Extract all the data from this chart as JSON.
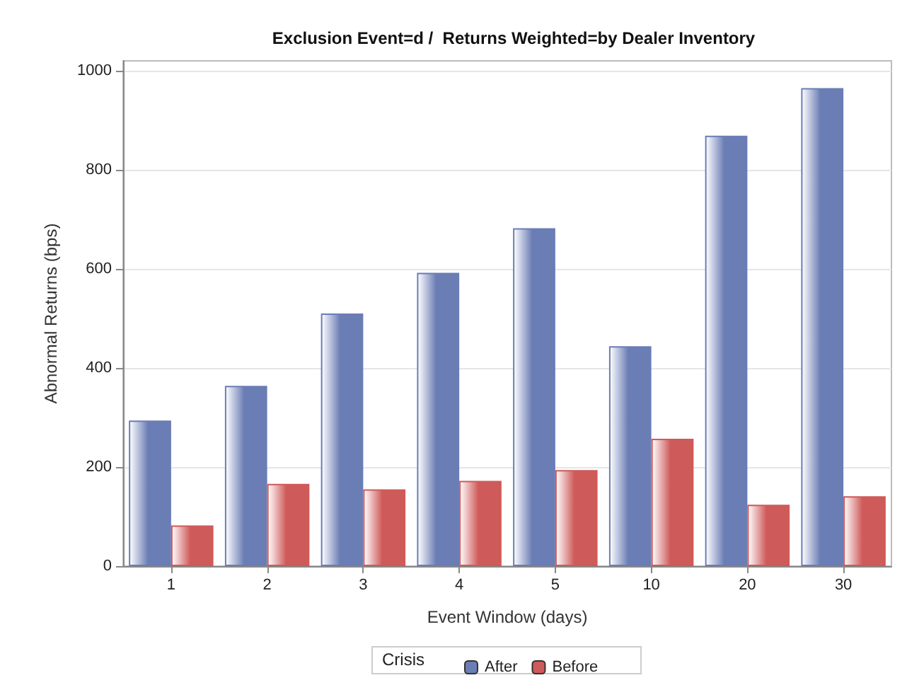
{
  "chart_data": {
    "type": "bar",
    "title": "Exclusion Event=d /  Returns Weighted=by Dealer Inventory",
    "xlabel": "Event Window (days)",
    "ylabel": "Abnormal Returns (bps)",
    "legend_title": "Crisis",
    "categories": [
      "1",
      "2",
      "3",
      "4",
      "5",
      "10",
      "20",
      "30"
    ],
    "series": [
      {
        "name": "After",
        "color": "#6b7db5",
        "values": [
          294,
          364,
          510,
          592,
          682,
          444,
          869,
          965
        ]
      },
      {
        "name": "Before",
        "color": "#cf5a5a",
        "values": [
          82,
          166,
          155,
          172,
          194,
          257,
          124,
          141
        ]
      }
    ],
    "ylim": [
      0,
      1020
    ],
    "yticks": [
      0,
      200,
      400,
      600,
      800,
      1000
    ],
    "grid": "y",
    "legend": "bottom"
  }
}
